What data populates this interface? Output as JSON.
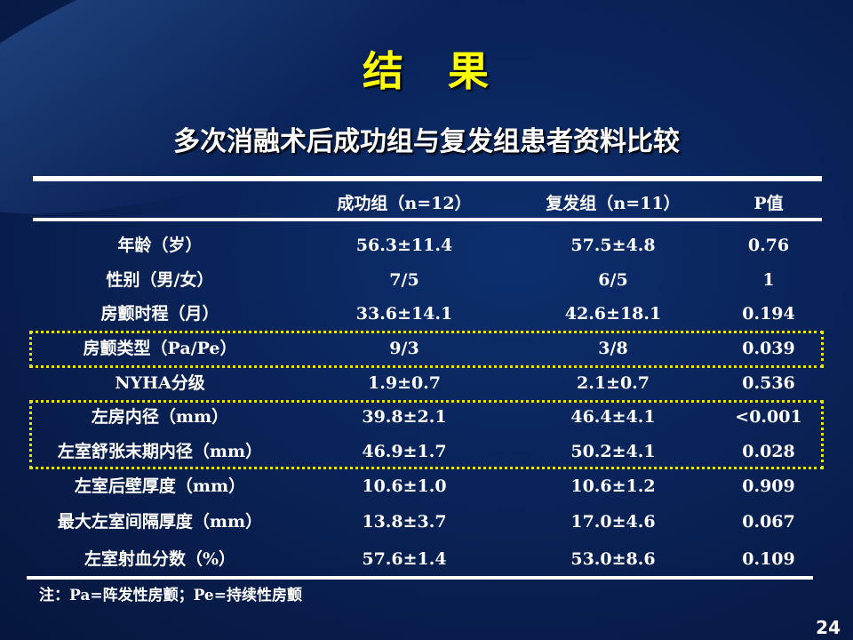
{
  "slide": {
    "title": "结　果",
    "subtitle": "多次消融术后成功组与复发组患者资料比较",
    "page_number": "24",
    "highlight_color": "#e6e600",
    "title_color": "#ffff00"
  },
  "table": {
    "headers": [
      "",
      "成功组（n=12）",
      "复发组（n=11）",
      "P值"
    ],
    "rows": [
      [
        "年龄（岁）",
        "56.3±11.4",
        "57.5±4.8",
        "0.76"
      ],
      [
        "性别（男/女）",
        "7/5",
        "6/5",
        "1"
      ],
      [
        "房颤时程（月）",
        "33.6±14.1",
        "42.6±18.1",
        "0.194"
      ],
      [
        "房颤类型（Pa/Pe）",
        "9/3",
        "3/8",
        "0.039"
      ],
      [
        "NYHA分级",
        "1.9±0.7",
        "2.1±0.7",
        "0.536"
      ],
      [
        "左房内径（mm）",
        "39.8±2.1",
        "46.4±4.1",
        "<0.001"
      ],
      [
        "左室舒张末期内径（mm）",
        "46.9±1.7",
        "50.2±4.1",
        "0.028"
      ],
      [
        "左室后壁厚度（mm）",
        "10.6±1.0",
        "10.6±1.2",
        "0.909"
      ],
      [
        "最大左室间隔厚度（mm）",
        "13.8±3.7",
        "17.0±4.6",
        "0.067"
      ],
      [
        "左室射血分数（%）",
        "57.6±1.4",
        "53.0±8.6",
        "0.109"
      ]
    ],
    "note": "注：Pa=阵发性房颤；Pe=持续性房颤"
  }
}
